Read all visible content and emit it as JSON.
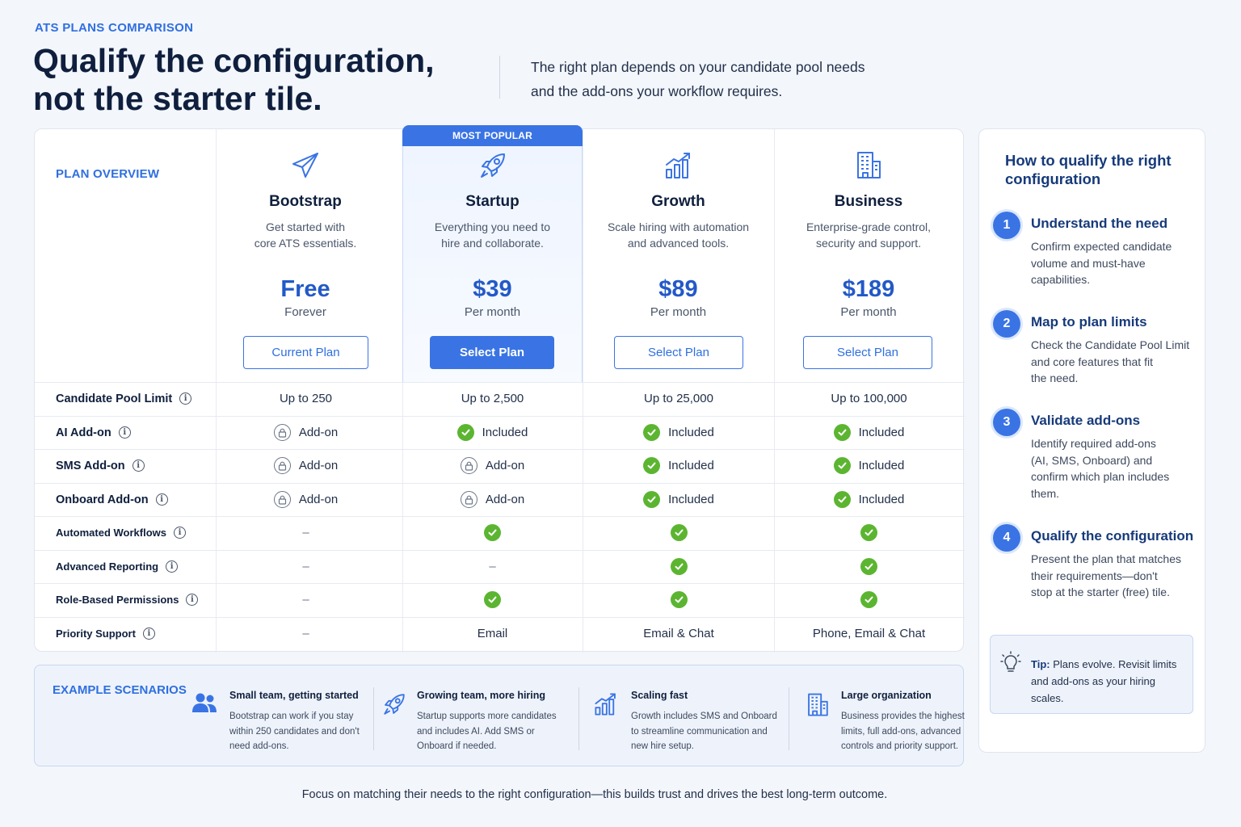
{
  "header": {
    "eyebrow": "ATS PLANS COMPARISON",
    "headline_line1": "Qualify the configuration,",
    "headline_line2": "not the starter tile.",
    "subhead_line1": "The right plan depends on your candidate pool needs",
    "subhead_line2": "and the add-ons your workflow requires."
  },
  "table": {
    "overview_label": "PLAN OVERVIEW",
    "popular_badge": "MOST POPULAR",
    "plans": [
      {
        "icon": "paper-plane-icon",
        "name": "Bootstrap",
        "desc_line1": "Get started with",
        "desc_line2": "core ATS essentials.",
        "price": "Free",
        "period": "Forever",
        "button": "Current Plan"
      },
      {
        "icon": "rocket-icon",
        "name": "Startup",
        "desc_line1": "Everything you need to",
        "desc_line2": "hire and collaborate.",
        "price": "$39",
        "period": "Per month",
        "button": "Select Plan"
      },
      {
        "icon": "growth-chart-icon",
        "name": "Growth",
        "desc_line1": "Scale hiring with automation",
        "desc_line2": "and advanced tools.",
        "price": "$89",
        "period": "Per month",
        "button": "Select Plan"
      },
      {
        "icon": "building-icon",
        "name": "Business",
        "desc_line1": "Enterprise-grade control,",
        "desc_line2": "security and support.",
        "price": "$189",
        "period": "Per month",
        "button": "Select Plan"
      }
    ],
    "features": [
      {
        "label": "Candidate Pool Limit",
        "values": [
          {
            "type": "text",
            "text": "Up to 250"
          },
          {
            "type": "text",
            "text": "Up to 2,500"
          },
          {
            "type": "text",
            "text": "Up to 25,000"
          },
          {
            "type": "text",
            "text": "Up to 100,000"
          }
        ]
      },
      {
        "label": "AI Add-on",
        "values": [
          {
            "type": "addon",
            "text": "Add-on"
          },
          {
            "type": "included",
            "text": "Included"
          },
          {
            "type": "included",
            "text": "Included"
          },
          {
            "type": "included",
            "text": "Included"
          }
        ]
      },
      {
        "label": "SMS Add-on",
        "values": [
          {
            "type": "addon",
            "text": "Add-on"
          },
          {
            "type": "addon",
            "text": "Add-on"
          },
          {
            "type": "included",
            "text": "Included"
          },
          {
            "type": "included",
            "text": "Included"
          }
        ]
      },
      {
        "label": "Onboard Add-on",
        "values": [
          {
            "type": "addon",
            "text": "Add-on"
          },
          {
            "type": "addon",
            "text": "Add-on"
          },
          {
            "type": "included",
            "text": "Included"
          },
          {
            "type": "included",
            "text": "Included"
          }
        ]
      },
      {
        "label": "Automated Workflows",
        "values": [
          {
            "type": "dash",
            "text": "–"
          },
          {
            "type": "check"
          },
          {
            "type": "check"
          },
          {
            "type": "check"
          }
        ]
      },
      {
        "label": "Advanced Reporting",
        "values": [
          {
            "type": "dash",
            "text": "–"
          },
          {
            "type": "dash",
            "text": "–"
          },
          {
            "type": "check"
          },
          {
            "type": "check"
          }
        ]
      },
      {
        "label": "Role-Based Permissions",
        "values": [
          {
            "type": "dash",
            "text": "–"
          },
          {
            "type": "check"
          },
          {
            "type": "check"
          },
          {
            "type": "check"
          }
        ]
      },
      {
        "label": "Priority Support",
        "values": [
          {
            "type": "dash",
            "text": "–"
          },
          {
            "type": "text",
            "text": "Email"
          },
          {
            "type": "text",
            "text": "Email & Chat"
          },
          {
            "type": "text",
            "text": "Phone, Email & Chat"
          }
        ]
      }
    ]
  },
  "qualify": {
    "title_line1": "How to qualify the right",
    "title_line2": "configuration",
    "steps": [
      {
        "num": "1",
        "title": "Understand the need",
        "lines": [
          "Confirm expected candidate",
          "volume and must-have",
          "capabilities."
        ]
      },
      {
        "num": "2",
        "title": "Map to plan limits",
        "lines": [
          "Check the Candidate Pool Limit",
          "and core features that fit",
          "the need."
        ]
      },
      {
        "num": "3",
        "title": "Validate add-ons",
        "lines": [
          "Identify required add-ons",
          "(AI, SMS, Onboard) and",
          "confirm which plan includes",
          "them."
        ]
      },
      {
        "num": "4",
        "title": "Qualify the configuration",
        "lines": [
          "Present the plan that matches",
          "their requirements—don't",
          "stop at the starter (free) tile."
        ]
      }
    ],
    "tip_label": "Tip:",
    "tip_line1": " Plans evolve. Revisit limits",
    "tip_line2": "and add-ons as your hiring scales."
  },
  "scenarios": {
    "label": "EXAMPLE SCENARIOS",
    "items": [
      {
        "icon": "team-icon",
        "title": "Small team, getting started",
        "lines": [
          "Bootstrap can work if you stay",
          "within 250 candidates and don't",
          "need add-ons."
        ]
      },
      {
        "icon": "rocket-icon",
        "title": "Growing team, more hiring",
        "lines": [
          "Startup supports more candidates",
          "and includes AI. Add SMS or",
          "Onboard if needed."
        ]
      },
      {
        "icon": "growth-chart-icon",
        "title": "Scaling fast",
        "lines": [
          "Growth includes SMS and Onboard",
          "to streamline communication and",
          "new hire setup."
        ]
      },
      {
        "icon": "building-icon",
        "title": "Large organization",
        "lines": [
          "Business provides the highest",
          "limits, full add-ons, advanced",
          "controls and priority support."
        ]
      }
    ]
  },
  "footer": "Focus on matching their needs to the right configuration—this builds trust and drives the best long-term outcome.",
  "colors": {
    "accent": "#3a74e4",
    "check": "#5cb531",
    "title_dark": "#0f1f3d"
  }
}
